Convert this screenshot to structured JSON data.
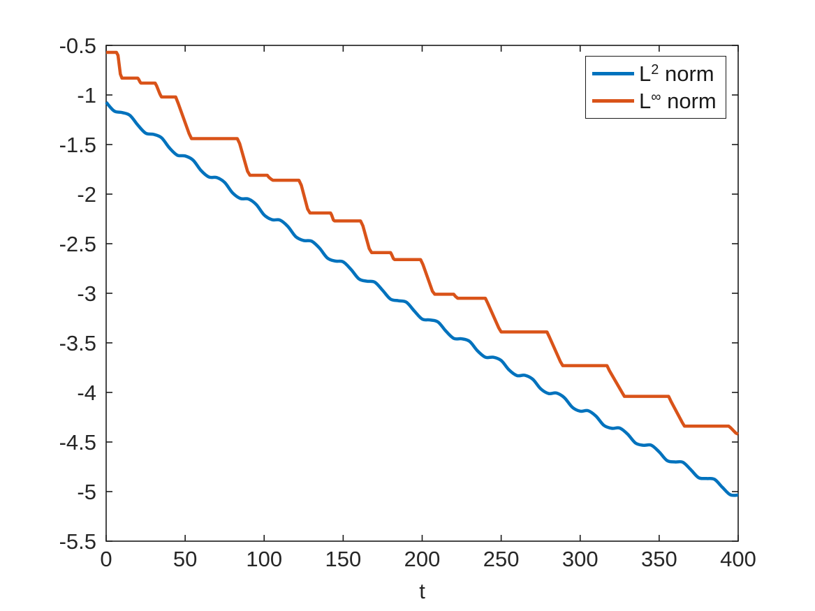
{
  "figure": {
    "background": "#ffffff"
  },
  "chart_data": {
    "type": "line",
    "title": "",
    "xlabel": "t",
    "ylabel": "",
    "xlim": [
      0,
      400
    ],
    "ylim": [
      -5.5,
      -0.5
    ],
    "grid": false,
    "box": true,
    "legend_position": "northeast",
    "axis_color": "#1a1a1a",
    "tick_label_color": "#262626",
    "x_ticks": [
      0,
      50,
      100,
      150,
      200,
      250,
      300,
      350,
      400
    ],
    "x_tick_labels": [
      "0",
      "50",
      "100",
      "150",
      "200",
      "250",
      "300",
      "350",
      "400"
    ],
    "y_ticks": [
      -0.5,
      -1,
      -1.5,
      -2,
      -2.5,
      -3,
      -3.5,
      -4,
      -4.5,
      -5,
      -5.5
    ],
    "y_tick_labels": [
      "-0.5",
      "-1",
      "-1.5",
      "-2",
      "-2.5",
      "-3",
      "-3.5",
      "-4",
      "-4.5",
      "-5",
      "-5.5"
    ],
    "legend": [
      {
        "base": "L",
        "sup": "2",
        "rest": " norm",
        "series": "L^2 norm"
      },
      {
        "base": "L",
        "sup": "∞",
        "rest": " norm",
        "series": "L^inf norm"
      }
    ],
    "series": [
      {
        "name": "L^2 norm",
        "color": "#0072BD",
        "smooth": true,
        "points": [
          [
            0,
            -1.073
          ],
          [
            5,
            -1.161
          ],
          [
            10,
            -1.177
          ],
          [
            15,
            -1.205
          ],
          [
            20,
            -1.303
          ],
          [
            25,
            -1.385
          ],
          [
            30,
            -1.397
          ],
          [
            35,
            -1.431
          ],
          [
            40,
            -1.533
          ],
          [
            45,
            -1.607
          ],
          [
            50,
            -1.615
          ],
          [
            55,
            -1.657
          ],
          [
            60,
            -1.761
          ],
          [
            65,
            -1.827
          ],
          [
            70,
            -1.833
          ],
          [
            75,
            -1.882
          ],
          [
            80,
            -1.987
          ],
          [
            85,
            -2.044
          ],
          [
            90,
            -2.049
          ],
          [
            95,
            -2.105
          ],
          [
            100,
            -2.21
          ],
          [
            105,
            -2.258
          ],
          [
            110,
            -2.262
          ],
          [
            115,
            -2.326
          ],
          [
            120,
            -2.429
          ],
          [
            125,
            -2.468
          ],
          [
            130,
            -2.474
          ],
          [
            135,
            -2.544
          ],
          [
            140,
            -2.644
          ],
          [
            145,
            -2.675
          ],
          [
            150,
            -2.683
          ],
          [
            155,
            -2.76
          ],
          [
            160,
            -2.855
          ],
          [
            165,
            -2.878
          ],
          [
            170,
            -2.888
          ],
          [
            175,
            -2.971
          ],
          [
            180,
            -3.059
          ],
          [
            185,
            -3.075
          ],
          [
            190,
            -3.09
          ],
          [
            195,
            -3.178
          ],
          [
            200,
            -3.26
          ],
          [
            205,
            -3.269
          ],
          [
            210,
            -3.289
          ],
          [
            215,
            -3.381
          ],
          [
            220,
            -3.455
          ],
          [
            225,
            -3.459
          ],
          [
            230,
            -3.485
          ],
          [
            235,
            -3.58
          ],
          [
            240,
            -3.645
          ],
          [
            245,
            -3.645
          ],
          [
            250,
            -3.678
          ],
          [
            255,
            -3.773
          ],
          [
            260,
            -3.83
          ],
          [
            265,
            -3.827
          ],
          [
            270,
            -3.867
          ],
          [
            275,
            -3.963
          ],
          [
            280,
            -4.011
          ],
          [
            285,
            -4.006
          ],
          [
            290,
            -4.053
          ],
          [
            295,
            -4.149
          ],
          [
            300,
            -4.189
          ],
          [
            305,
            -4.184
          ],
          [
            310,
            -4.239
          ],
          [
            315,
            -4.332
          ],
          [
            320,
            -4.362
          ],
          [
            325,
            -4.359
          ],
          [
            330,
            -4.42
          ],
          [
            335,
            -4.51
          ],
          [
            340,
            -4.533
          ],
          [
            345,
            -4.532
          ],
          [
            350,
            -4.6
          ],
          [
            355,
            -4.687
          ],
          [
            360,
            -4.701
          ],
          [
            365,
            -4.704
          ],
          [
            370,
            -4.779
          ],
          [
            375,
            -4.86
          ],
          [
            380,
            -4.868
          ],
          [
            385,
            -4.876
          ],
          [
            390,
            -4.957
          ],
          [
            395,
            -5.032
          ],
          [
            400,
            -5.035
          ]
        ]
      },
      {
        "name": "L^inf norm",
        "color": "#D95319",
        "smooth": false,
        "points": [
          [
            0,
            -0.57
          ],
          [
            6.5,
            -0.57
          ],
          [
            7.5,
            -0.6
          ],
          [
            9,
            -0.79
          ],
          [
            10,
            -0.83
          ],
          [
            20,
            -0.83
          ],
          [
            20.5,
            -0.84
          ],
          [
            21.5,
            -0.87
          ],
          [
            22,
            -0.88
          ],
          [
            31,
            -0.88
          ],
          [
            32,
            -0.91
          ],
          [
            34,
            -0.99
          ],
          [
            35,
            -1.02
          ],
          [
            44,
            -1.02
          ],
          [
            45.5,
            -1.08
          ],
          [
            52.5,
            -1.39
          ],
          [
            54,
            -1.44
          ],
          [
            83,
            -1.44
          ],
          [
            84.5,
            -1.49
          ],
          [
            89.5,
            -1.77
          ],
          [
            91,
            -1.81
          ],
          [
            102,
            -1.81
          ],
          [
            103,
            -1.83
          ],
          [
            104.5,
            -1.85
          ],
          [
            105.5,
            -1.86
          ],
          [
            122,
            -1.86
          ],
          [
            123.5,
            -1.91
          ],
          [
            127.5,
            -2.15
          ],
          [
            129,
            -2.19
          ],
          [
            142,
            -2.19
          ],
          [
            142.7,
            -2.21
          ],
          [
            143.8,
            -2.26
          ],
          [
            144.5,
            -2.27
          ],
          [
            161,
            -2.27
          ],
          [
            162.5,
            -2.32
          ],
          [
            166.5,
            -2.55
          ],
          [
            168,
            -2.59
          ],
          [
            180,
            -2.59
          ],
          [
            180.7,
            -2.61
          ],
          [
            181.8,
            -2.65
          ],
          [
            182.5,
            -2.66
          ],
          [
            199,
            -2.66
          ],
          [
            200.5,
            -2.71
          ],
          [
            206.5,
            -2.98
          ],
          [
            208,
            -3.01
          ],
          [
            220,
            -3.01
          ],
          [
            221,
            -3.03
          ],
          [
            222.5,
            -3.05
          ],
          [
            240,
            -3.05
          ],
          [
            241.5,
            -3.1
          ],
          [
            248.5,
            -3.35
          ],
          [
            250,
            -3.39
          ],
          [
            279,
            -3.39
          ],
          [
            280.5,
            -3.44
          ],
          [
            287.5,
            -3.69
          ],
          [
            289,
            -3.73
          ],
          [
            317,
            -3.73
          ],
          [
            318.5,
            -3.78
          ],
          [
            326.5,
            -4.0
          ],
          [
            328,
            -4.04
          ],
          [
            356,
            -4.04
          ],
          [
            357.5,
            -4.09
          ],
          [
            364.5,
            -4.3
          ],
          [
            366,
            -4.34
          ],
          [
            394,
            -4.34
          ],
          [
            395.5,
            -4.36
          ],
          [
            398.5,
            -4.41
          ],
          [
            400,
            -4.42
          ]
        ]
      }
    ]
  }
}
